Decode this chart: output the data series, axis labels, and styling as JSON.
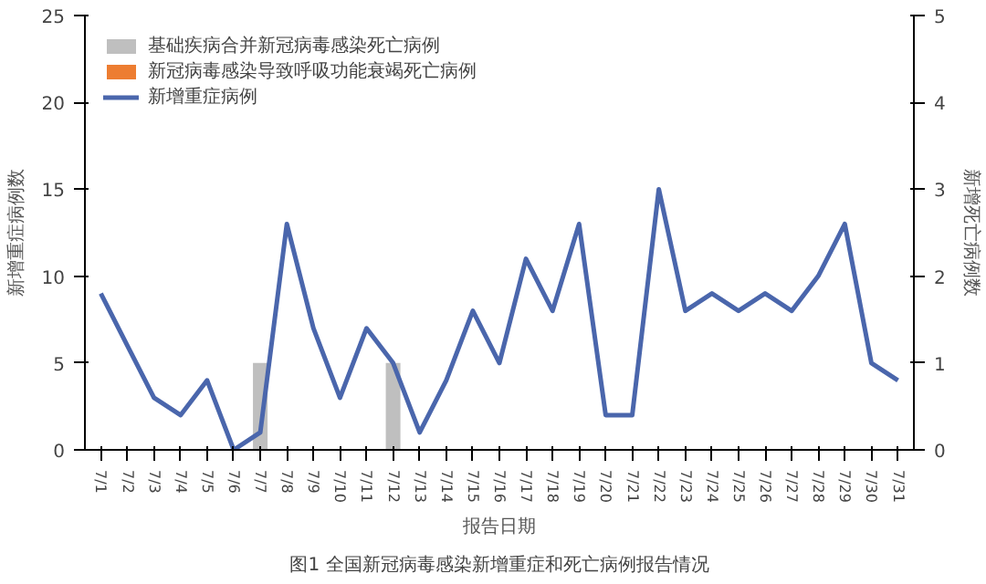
{
  "chart_data": {
    "type": "bar",
    "title": "图1 全国新冠病毒感染新增重症和死亡病例报告情况",
    "xlabel": "报告日期",
    "ylabel": "新增重症病例数",
    "y2label": "新增死亡病例数",
    "categories": [
      "7/1",
      "7/2",
      "7/3",
      "7/4",
      "7/5",
      "7/6",
      "7/7",
      "7/8",
      "7/9",
      "7/10",
      "7/11",
      "7/12",
      "7/13",
      "7/14",
      "7/15",
      "7/16",
      "7/17",
      "7/18",
      "7/19",
      "7/20",
      "7/21",
      "7/22",
      "7/23",
      "7/24",
      "7/25",
      "7/26",
      "7/27",
      "7/28",
      "7/29",
      "7/30",
      "7/31"
    ],
    "ylim": [
      0,
      25
    ],
    "yticks": [
      0,
      5,
      10,
      15,
      20,
      25
    ],
    "y2lim": [
      0,
      5
    ],
    "y2ticks": [
      0,
      1,
      2,
      3,
      4,
      5
    ],
    "grid": false,
    "legend": "top left",
    "series": [
      {
        "name": "基础疾病合并新冠病毒感染死亡病例",
        "axis": "y2",
        "color": "#bfbfbf",
        "values": [
          0,
          0,
          0,
          0,
          0,
          0,
          1,
          0,
          0,
          0,
          0,
          1,
          0,
          0,
          0,
          0,
          0,
          0,
          0,
          0,
          0,
          0,
          0,
          0,
          0,
          0,
          0,
          0,
          0,
          0,
          0
        ]
      },
      {
        "name": "新冠病毒感染导致呼吸功能衰竭死亡病例",
        "axis": "y2",
        "color": "#ed7d31",
        "values": [
          0,
          0,
          0,
          0,
          0,
          0,
          0,
          0,
          0,
          0,
          0,
          0,
          0,
          0,
          0,
          0,
          0,
          0,
          0,
          0,
          0,
          0,
          0,
          0,
          0,
          0,
          0,
          0,
          0,
          0,
          0
        ]
      },
      {
        "name": "新增重症病例",
        "type": "line",
        "axis": "y",
        "color": "#4a66ac",
        "values": [
          9,
          6,
          3,
          2,
          4,
          0,
          1,
          13,
          7,
          3,
          7,
          5,
          1,
          4,
          8,
          5,
          11,
          8,
          13,
          2,
          2,
          15,
          8,
          9,
          8,
          9,
          8,
          10,
          13,
          5,
          4
        ]
      }
    ]
  }
}
